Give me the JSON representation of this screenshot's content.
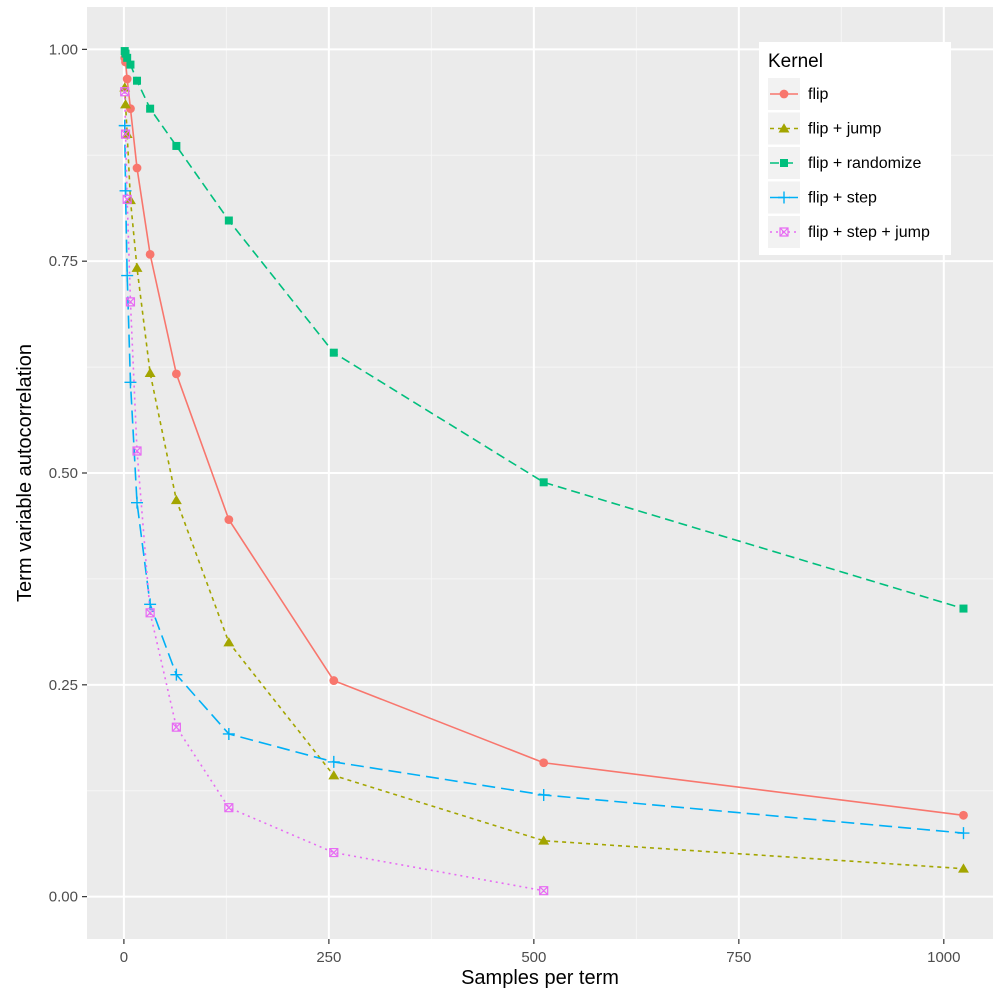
{
  "chart_data": {
    "type": "line",
    "xlabel": "Samples per term",
    "ylabel": "Term variable autocorrelation",
    "xlim": [
      -45,
      1060
    ],
    "ylim": [
      -0.05,
      1.05
    ],
    "x_ticks": [
      0,
      250,
      500,
      750,
      1000
    ],
    "x_tick_labels": [
      "0",
      "250",
      "500",
      "750",
      "1000"
    ],
    "y_ticks": [
      0,
      0.25,
      0.5,
      0.75,
      1.0
    ],
    "y_tick_labels": [
      "0.00",
      "0.25",
      "0.50",
      "0.75",
      "1.00"
    ],
    "grid": true,
    "legend": {
      "title": "Kernel",
      "placement": "top-right"
    },
    "series": [
      {
        "name": "flip",
        "color": "#F8766D",
        "marker": "circle",
        "line": "solid",
        "points": [
          [
            1,
            0.99
          ],
          [
            2,
            0.985
          ],
          [
            4,
            0.965
          ],
          [
            8,
            0.93
          ],
          [
            16,
            0.86
          ],
          [
            32,
            0.758
          ],
          [
            64,
            0.617
          ],
          [
            128,
            0.445
          ],
          [
            256,
            0.255
          ],
          [
            512,
            0.158
          ],
          [
            1024,
            0.096
          ]
        ]
      },
      {
        "name": "flip + jump",
        "color": "#A3A500",
        "marker": "triangle",
        "line": "dotted",
        "points": [
          [
            1,
            0.955
          ],
          [
            2,
            0.935
          ],
          [
            4,
            0.9
          ],
          [
            8,
            0.822
          ],
          [
            16,
            0.742
          ],
          [
            32,
            0.618
          ],
          [
            64,
            0.468
          ],
          [
            128,
            0.3
          ],
          [
            256,
            0.143
          ],
          [
            512,
            0.066
          ],
          [
            1024,
            0.033
          ]
        ]
      },
      {
        "name": "flip + randomize",
        "color": "#00BF7D",
        "marker": "square",
        "line": "dashed",
        "points": [
          [
            1,
            0.998
          ],
          [
            2,
            0.995
          ],
          [
            4,
            0.99
          ],
          [
            8,
            0.982
          ],
          [
            16,
            0.963
          ],
          [
            32,
            0.93
          ],
          [
            64,
            0.886
          ],
          [
            128,
            0.798
          ],
          [
            256,
            0.642
          ],
          [
            512,
            0.489
          ],
          [
            1024,
            0.34
          ]
        ]
      },
      {
        "name": "flip + step",
        "color": "#00B0F6",
        "marker": "plus",
        "line": "longdash",
        "points": [
          [
            1,
            0.91
          ],
          [
            2,
            0.833
          ],
          [
            4,
            0.733
          ],
          [
            8,
            0.607
          ],
          [
            16,
            0.465
          ],
          [
            32,
            0.345
          ],
          [
            64,
            0.262
          ],
          [
            128,
            0.192
          ],
          [
            256,
            0.159
          ],
          [
            512,
            0.12
          ],
          [
            1024,
            0.075
          ]
        ]
      },
      {
        "name": "flip + step + jump",
        "color": "#E76BF3",
        "marker": "square-cross",
        "line": "fine-dotted",
        "points": [
          [
            1,
            0.95
          ],
          [
            2,
            0.9
          ],
          [
            4,
            0.823
          ],
          [
            8,
            0.702
          ],
          [
            16,
            0.526
          ],
          [
            32,
            0.335
          ],
          [
            64,
            0.2
          ],
          [
            128,
            0.105
          ],
          [
            256,
            0.052
          ],
          [
            512,
            0.007
          ]
        ]
      }
    ]
  }
}
